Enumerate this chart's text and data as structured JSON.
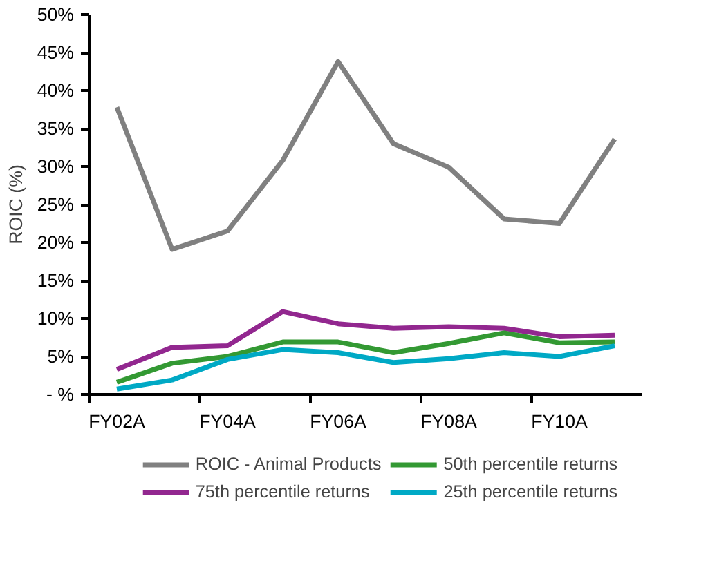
{
  "chart_data": {
    "type": "line",
    "ylabel": "ROIC (%)",
    "categories": [
      "FY02A",
      null,
      "FY04A",
      null,
      "FY06A",
      null,
      "FY08A",
      null,
      "FY10A",
      null
    ],
    "series": [
      {
        "name": "ROIC - Animal Products",
        "color": "#808080",
        "values": [
          37.8,
          19.1,
          21.5,
          30.8,
          43.8,
          33.0,
          29.9,
          23.1,
          22.5,
          33.6
        ]
      },
      {
        "name": "75th percentile returns",
        "color": "#92278f",
        "values": [
          3.3,
          6.2,
          6.4,
          10.9,
          9.3,
          8.7,
          8.9,
          8.7,
          7.6,
          7.8
        ]
      },
      {
        "name": "50th percentile returns",
        "color": "#339933",
        "values": [
          1.6,
          4.1,
          5.0,
          6.9,
          6.9,
          5.5,
          6.7,
          8.1,
          6.8,
          6.9
        ]
      },
      {
        "name": "25th percentile returns",
        "color": "#00a9c5",
        "values": [
          0.7,
          1.9,
          4.6,
          5.9,
          5.5,
          4.2,
          4.7,
          5.5,
          5.0,
          6.4
        ]
      }
    ],
    "ylim": [
      0,
      50
    ],
    "yticks": [
      {
        "value": 0,
        "label": "- %"
      },
      {
        "value": 5,
        "label": "5%"
      },
      {
        "value": 10,
        "label": "10%"
      },
      {
        "value": 15,
        "label": "15%"
      },
      {
        "value": 20,
        "label": "20%"
      },
      {
        "value": 25,
        "label": "25%"
      },
      {
        "value": 30,
        "label": "30%"
      },
      {
        "value": 35,
        "label": "35%"
      },
      {
        "value": 40,
        "label": "40%"
      },
      {
        "value": 45,
        "label": "45%"
      },
      {
        "value": 50,
        "label": "50%"
      }
    ],
    "grid": false,
    "legend": "bottom",
    "marker": "none",
    "line_style": "solid"
  }
}
